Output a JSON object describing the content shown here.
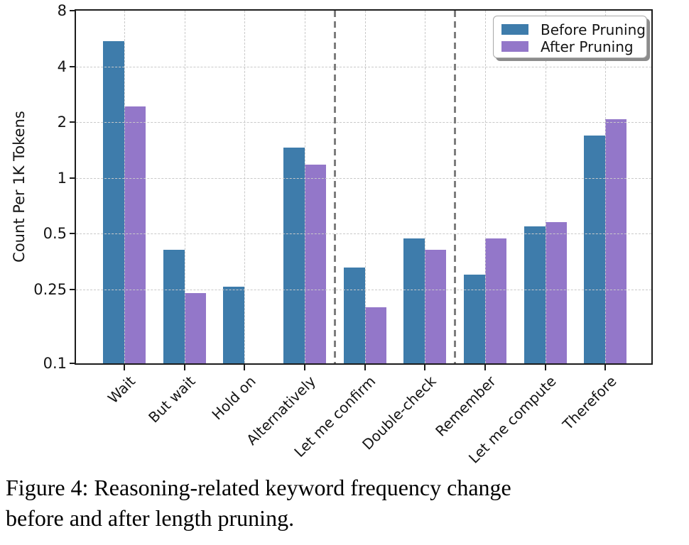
{
  "figure": {
    "caption_line1": "Figure 4: Reasoning-related keyword frequency change",
    "caption_line2": "before and after length pruning."
  },
  "chart_data": {
    "type": "bar",
    "title": "",
    "xlabel": "",
    "ylabel": "Count Per 1K Tokens",
    "y_scale": "log",
    "ylim": [
      0.1,
      8
    ],
    "yticks": [
      8,
      4,
      2,
      1,
      0.5,
      0.25,
      0.1
    ],
    "ytick_labels": [
      "8",
      "4",
      "2",
      "1",
      "0.5",
      "0.25",
      "0.1"
    ],
    "grid": "dashed",
    "legend_position": "upper right",
    "categories": [
      "Wait",
      "But wait",
      "Hold on",
      "Alternatively",
      "Let me confirm",
      "Double-check",
      "Remember",
      "Let me compute",
      "Therefore"
    ],
    "series": [
      {
        "name": "Before Pruning",
        "color": "#3E7CAB",
        "values": [
          5.46,
          0.41,
          0.26,
          1.46,
          0.33,
          0.47,
          0.3,
          0.55,
          1.7
        ]
      },
      {
        "name": "After Pruning",
        "color": "#9377C9",
        "values": [
          2.43,
          0.24,
          null,
          1.18,
          0.2,
          0.41,
          0.47,
          0.58,
          2.08
        ]
      }
    ],
    "group_separators_after": [
      "Alternatively",
      "Double-check"
    ]
  }
}
